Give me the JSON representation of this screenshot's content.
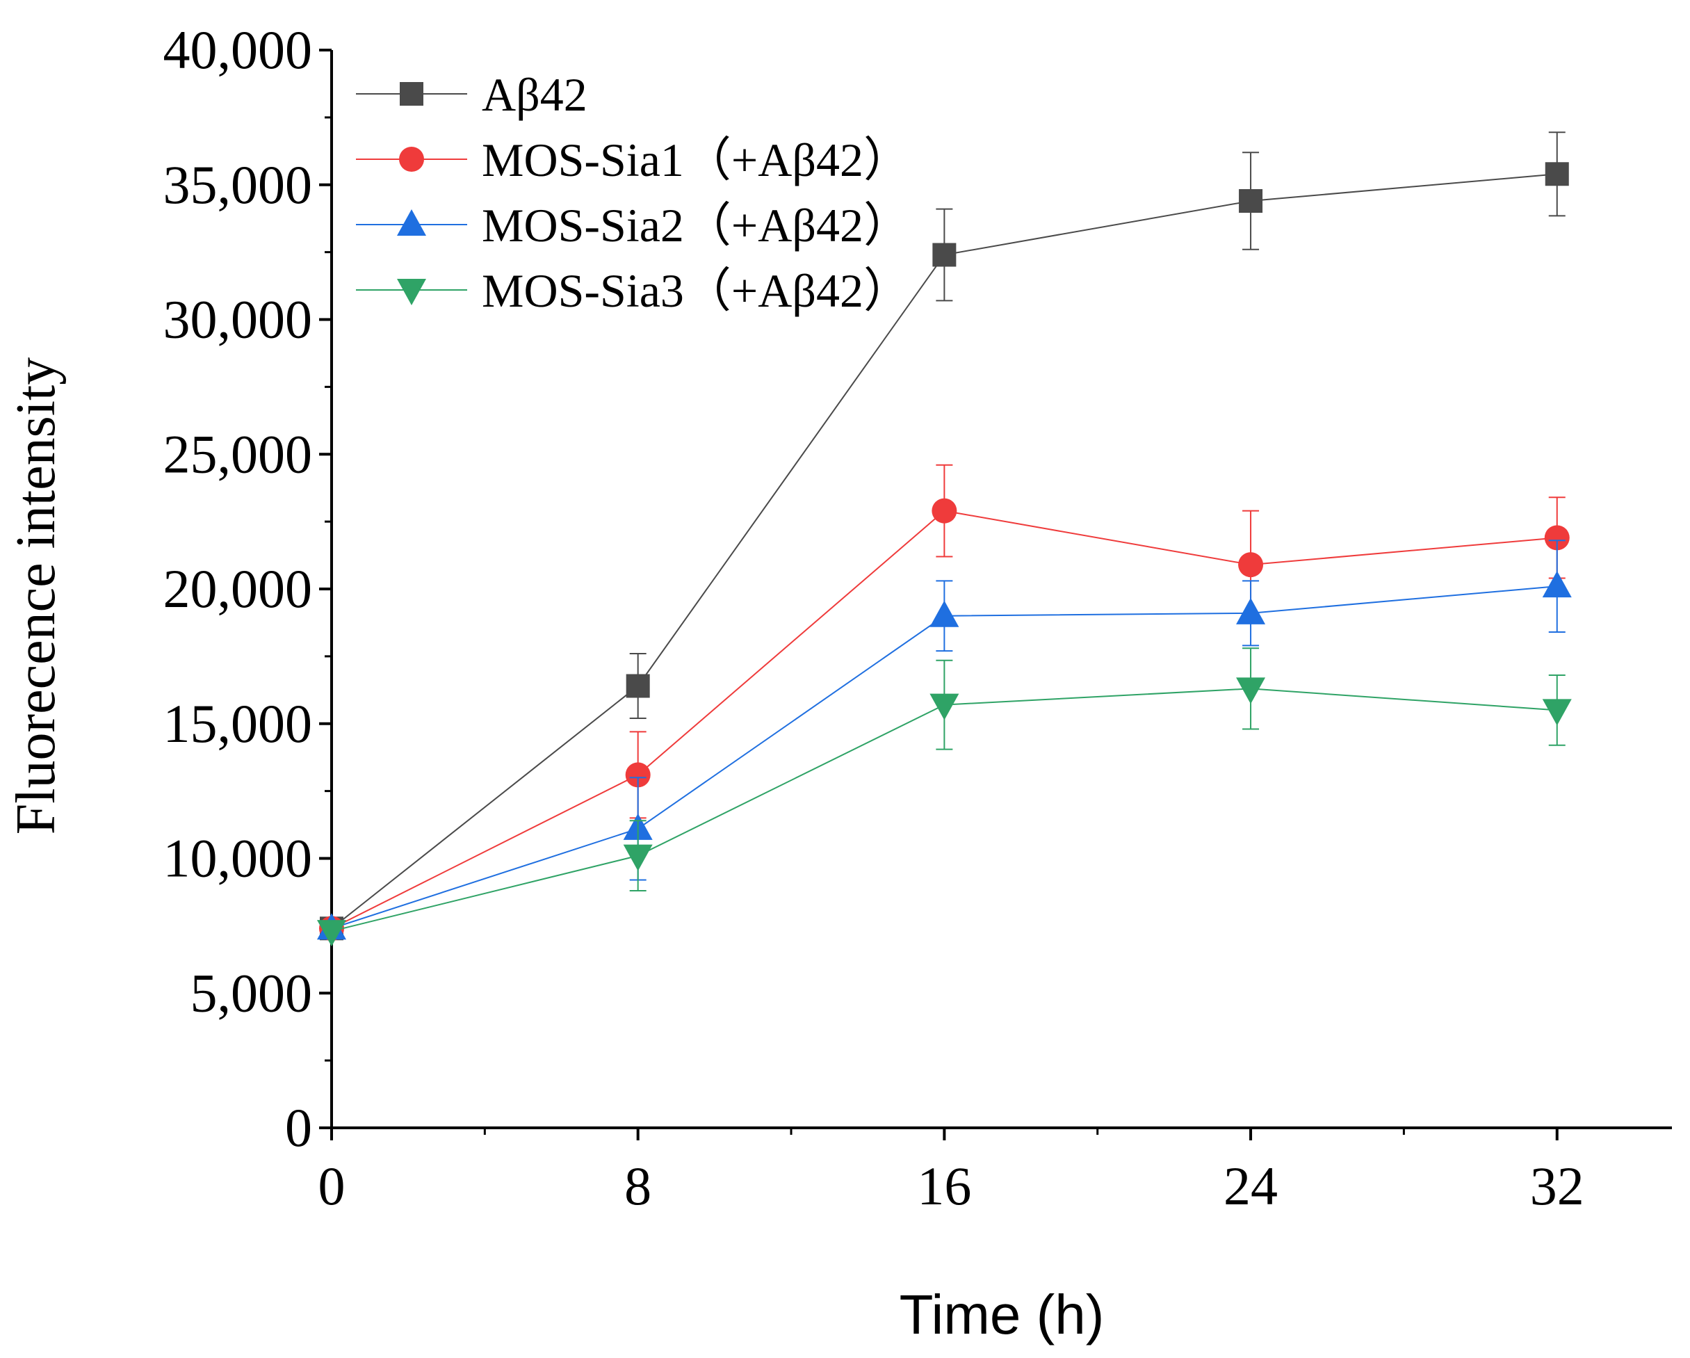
{
  "chart_data": {
    "type": "line",
    "title": "",
    "xlabel": "Time (h)",
    "ylabel": "Fluorecence intensity",
    "x": [
      0,
      8,
      16,
      24,
      32
    ],
    "xlim": [
      0,
      35
    ],
    "ylim": [
      0,
      40000
    ],
    "x_ticks": [
      0,
      8,
      16,
      24,
      32
    ],
    "x_tick_labels": [
      "0",
      "8",
      "16",
      "24",
      "32"
    ],
    "y_ticks": [
      0,
      5000,
      10000,
      15000,
      20000,
      25000,
      30000,
      35000,
      40000
    ],
    "y_tick_labels": [
      "0",
      "5,000",
      "10,000",
      "15,000",
      "20,000",
      "25,000",
      "30,000",
      "35,000",
      "40,000"
    ],
    "grid": false,
    "legend_position": "top-left",
    "series": [
      {
        "name": "Aβ42",
        "label": "Aβ42",
        "color": "#4a4a4a",
        "marker": "square",
        "values": [
          7400,
          16400,
          32400,
          34400,
          35400
        ],
        "errors": [
          0,
          1200,
          1700,
          1800,
          1550
        ]
      },
      {
        "name": "MOS-Sia1",
        "label": "MOS-Sia1（+Aβ42）",
        "color": "#ef3b3b",
        "marker": "circle",
        "values": [
          7400,
          13100,
          22900,
          20900,
          21900
        ],
        "errors": [
          0,
          1600,
          1700,
          2000,
          1500
        ]
      },
      {
        "name": "MOS-Sia2",
        "label": "MOS-Sia2（+Aβ42）",
        "color": "#1f6fe0",
        "marker": "triangle-up",
        "values": [
          7400,
          11100,
          19000,
          19100,
          20100
        ],
        "errors": [
          0,
          1900,
          1300,
          1200,
          1700
        ]
      },
      {
        "name": "MOS-Sia3",
        "label": "MOS-Sia3（+Aβ42）",
        "color": "#2fa366",
        "marker": "triangle-down",
        "values": [
          7300,
          10100,
          15700,
          16300,
          15500
        ],
        "errors": [
          0,
          1300,
          1650,
          1500,
          1300
        ]
      }
    ]
  }
}
